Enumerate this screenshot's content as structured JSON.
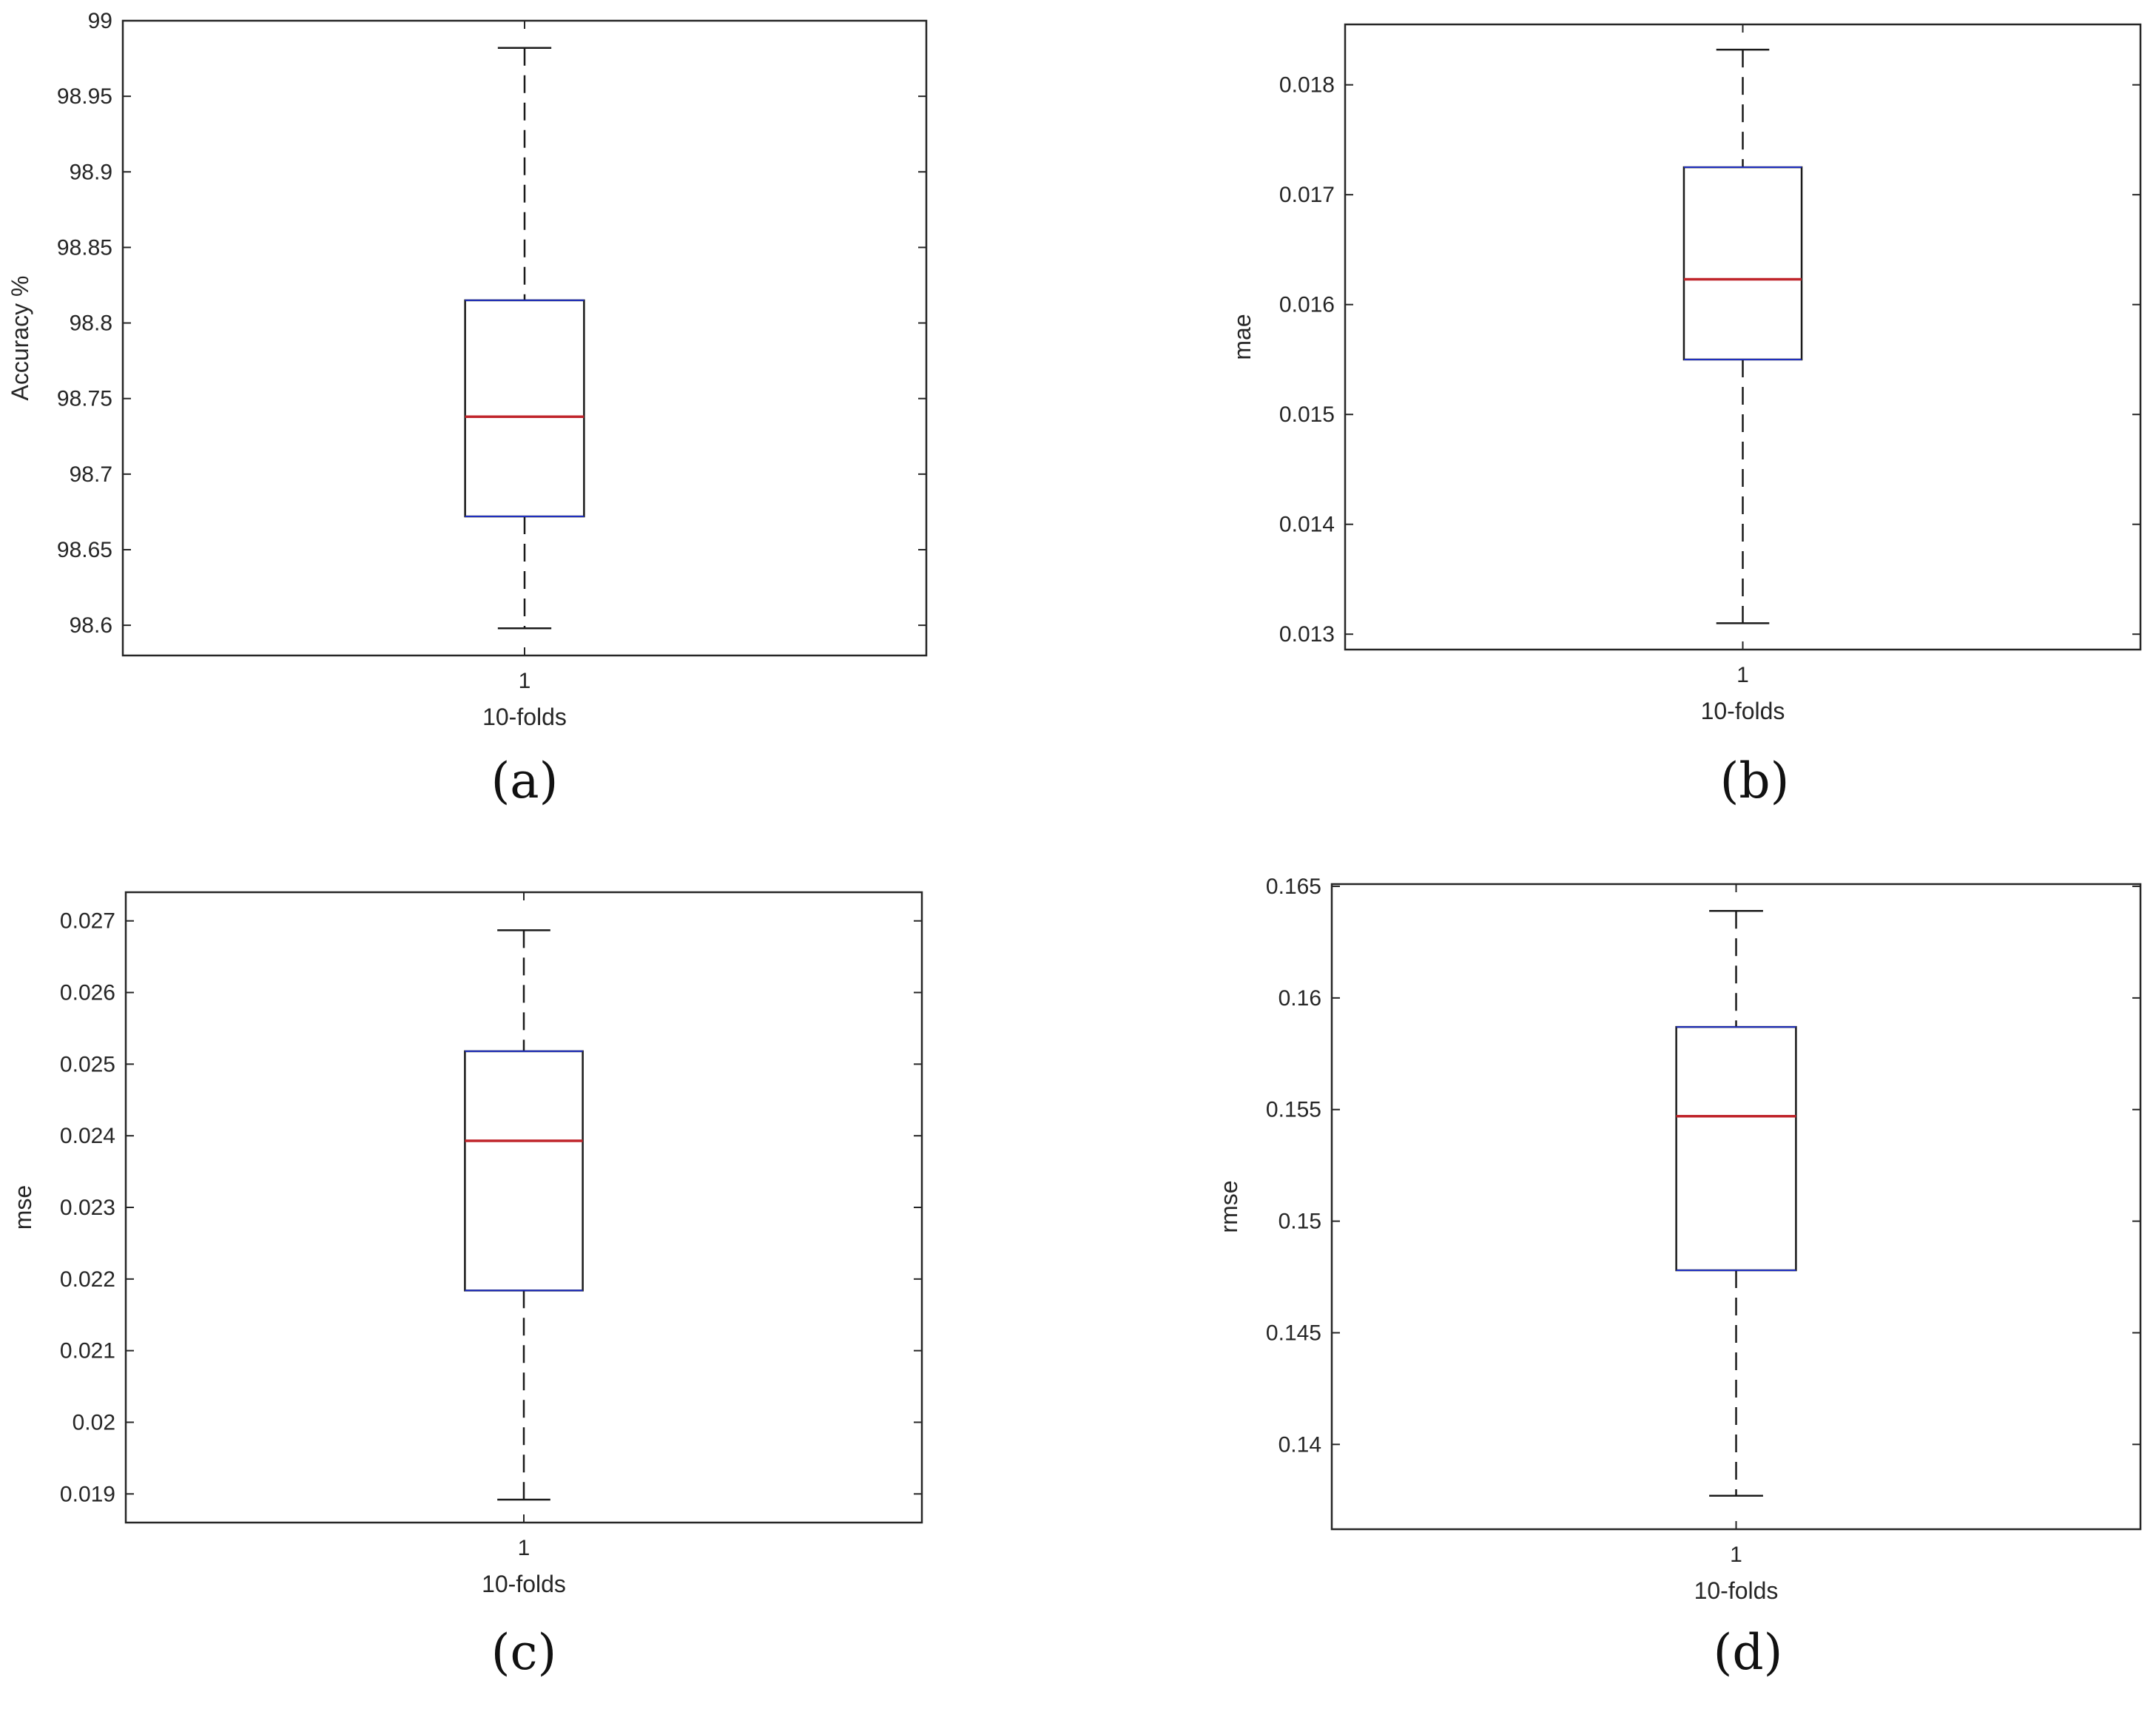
{
  "chart_data": [
    {
      "type": "box",
      "caption": "(a)",
      "ylabel": "Accuracy %",
      "xlabel": "10-folds",
      "categories": [
        "1"
      ],
      "ylim": [
        98.58,
        99.0
      ],
      "yticks": [
        "98.6",
        "98.65",
        "98.7",
        "98.75",
        "98.8",
        "98.85",
        "98.9",
        "98.95",
        "99"
      ],
      "box": {
        "min": 98.598,
        "q1": 98.672,
        "median": 98.738,
        "q3": 98.815,
        "max": 98.982
      }
    },
    {
      "type": "box",
      "caption": "(b)",
      "ylabel": "mae",
      "xlabel": "10-folds",
      "categories": [
        "1"
      ],
      "ylim": [
        0.01286,
        0.01855
      ],
      "yticks": [
        "0.013",
        "0.014",
        "0.015",
        "0.016",
        "0.017",
        "0.018"
      ],
      "box": {
        "min": 0.0131,
        "q1": 0.0155,
        "median": 0.01623,
        "q3": 0.01725,
        "max": 0.01832
      }
    },
    {
      "type": "box",
      "caption": "(c)",
      "ylabel": "mse",
      "xlabel": "10-folds",
      "categories": [
        "1"
      ],
      "ylim": [
        0.0186,
        0.0274
      ],
      "yticks": [
        "0.019",
        "0.02",
        "0.021",
        "0.022",
        "0.023",
        "0.024",
        "0.025",
        "0.026",
        "0.027"
      ],
      "box": {
        "min": 0.01892,
        "q1": 0.02184,
        "median": 0.02393,
        "q3": 0.02518,
        "max": 0.02687
      }
    },
    {
      "type": "box",
      "caption": "(d)",
      "ylabel": "rmse",
      "xlabel": "10-folds",
      "categories": [
        "1"
      ],
      "ylim": [
        0.1362,
        0.1651
      ],
      "yticks": [
        "0.14",
        "0.145",
        "0.15",
        "0.155",
        "0.16",
        "0.165"
      ],
      "box": {
        "min": 0.1377,
        "q1": 0.1478,
        "median": 0.1547,
        "q3": 0.1587,
        "max": 0.1639
      }
    }
  ],
  "colors": {
    "axis": "#262626",
    "box": "#1a1a1a",
    "median": "#c0252b",
    "quartile_edge": "#1f2fbf"
  }
}
